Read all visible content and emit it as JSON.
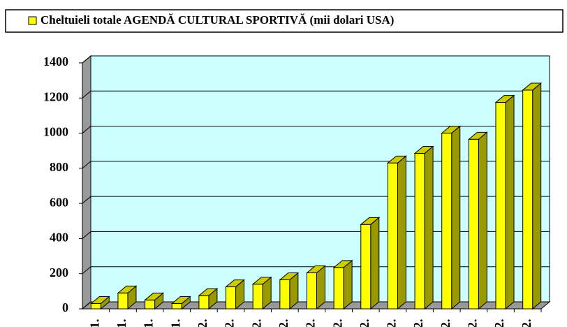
{
  "chart_data": {
    "type": "bar3d",
    "legend": "Cheltuieli totale AGENDĂ CULTURAL SPORTIVĂ  (mii dolari USA)",
    "categories": [
      "1.",
      "1.",
      "1.",
      "1.",
      "2.",
      "2.",
      "2.",
      "2.",
      "2.",
      "2.",
      "2.",
      "2.",
      "2.",
      "2.",
      "2.",
      "2.",
      "2."
    ],
    "values": [
      30,
      90,
      50,
      30,
      75,
      125,
      140,
      165,
      205,
      235,
      480,
      830,
      885,
      1000,
      965,
      1175,
      1245
    ],
    "color": "#ffff00",
    "ylim": [
      0,
      1400
    ],
    "yticks": [
      0,
      200,
      400,
      600,
      800,
      1000,
      1200,
      1400
    ],
    "grid": true
  }
}
